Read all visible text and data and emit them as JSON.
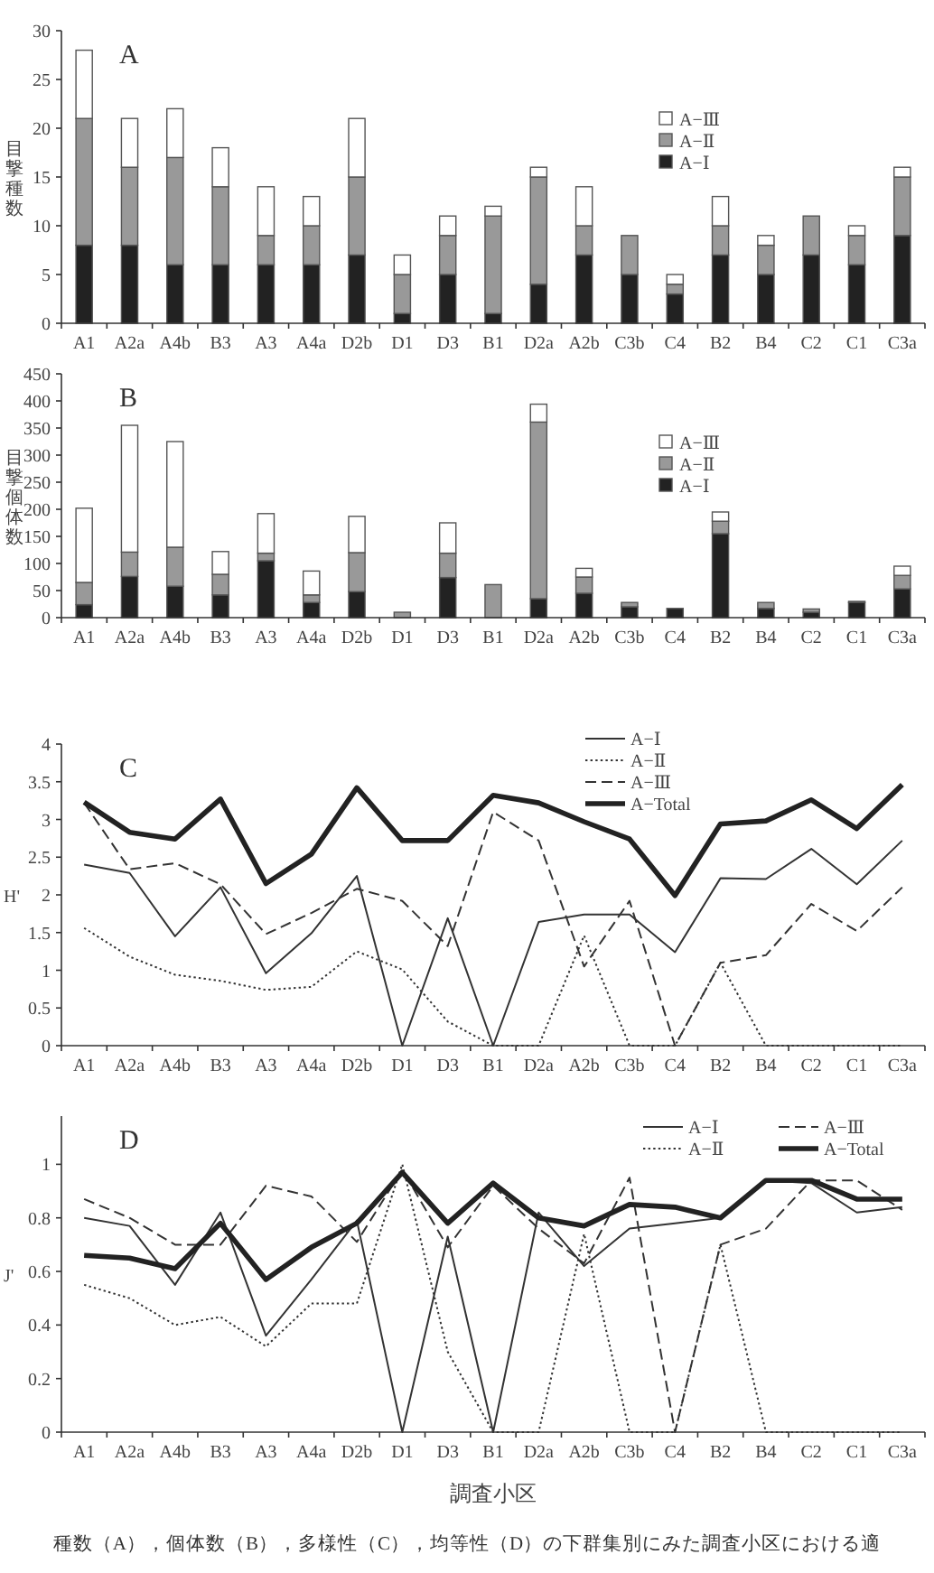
{
  "chart_data": [
    {
      "type": "bar",
      "title": "A",
      "ylabel": "目撃種数",
      "stacked": true,
      "legend": "top right",
      "grid": false,
      "categories": [
        "A1",
        "A2a",
        "A4b",
        "B3",
        "A3",
        "A4a",
        "D2b",
        "D1",
        "D3",
        "B1",
        "D2a",
        "A2b",
        "C3b",
        "C4",
        "B2",
        "B4",
        "C2",
        "C1",
        "C3a"
      ],
      "ylim": [
        0,
        30
      ],
      "yticks": [
        0,
        5,
        10,
        15,
        20,
        25,
        30
      ],
      "series": [
        {
          "name": "A−Ⅰ",
          "color": "#222222",
          "values": [
            8,
            8,
            6,
            6,
            6,
            6,
            7,
            1,
            5,
            1,
            4,
            7,
            5,
            3,
            7,
            5,
            7,
            6,
            9
          ]
        },
        {
          "name": "A−Ⅱ",
          "color": "#999999",
          "values": [
            13,
            8,
            11,
            8,
            3,
            4,
            8,
            4,
            4,
            10,
            11,
            3,
            4,
            1,
            3,
            3,
            4,
            3,
            6
          ]
        },
        {
          "name": "A−Ⅲ",
          "color": "#ffffff",
          "values": [
            7,
            5,
            5,
            4,
            5,
            3,
            6,
            2,
            2,
            1,
            1,
            4,
            0,
            1,
            3,
            1,
            0,
            1,
            1
          ]
        }
      ]
    },
    {
      "type": "bar",
      "title": "B",
      "ylabel": "目撃個体数",
      "stacked": true,
      "legend": "top right",
      "grid": false,
      "categories": [
        "A1",
        "A2a",
        "A4b",
        "B3",
        "A3",
        "A4a",
        "D2b",
        "D1",
        "D3",
        "B1",
        "D2a",
        "A2b",
        "C3b",
        "C4",
        "B2",
        "B4",
        "C2",
        "C1",
        "C3a"
      ],
      "ylim": [
        0,
        450
      ],
      "yticks": [
        0,
        50,
        100,
        150,
        200,
        250,
        300,
        350,
        400,
        450
      ],
      "series": [
        {
          "name": "A−Ⅰ",
          "color": "#222222",
          "values": [
            24,
            76,
            58,
            42,
            105,
            28,
            48,
            0,
            74,
            0,
            35,
            45,
            20,
            17,
            155,
            17,
            10,
            28,
            53
          ]
        },
        {
          "name": "A−Ⅱ",
          "color": "#999999",
          "values": [
            41,
            45,
            72,
            38,
            14,
            14,
            72,
            10,
            45,
            61,
            326,
            30,
            8,
            0,
            23,
            11,
            6,
            2,
            25
          ]
        },
        {
          "name": "A−Ⅲ",
          "color": "#ffffff",
          "values": [
            137,
            234,
            195,
            42,
            73,
            44,
            67,
            0,
            56,
            0,
            33,
            16,
            null,
            0,
            17,
            null,
            null,
            0,
            17
          ]
        }
      ]
    },
    {
      "type": "line",
      "title": "C",
      "ylabel": "H'",
      "legend": "top right",
      "grid": false,
      "marker": "none",
      "categories": [
        "A1",
        "A2a",
        "A4b",
        "B3",
        "A3",
        "A4a",
        "D2b",
        "D1",
        "D3",
        "B1",
        "D2a",
        "A2b",
        "C3b",
        "C4",
        "B2",
        "B4",
        "C2",
        "C1",
        "C3a"
      ],
      "ylim": [
        0,
        4
      ],
      "yticks": [
        0,
        0.5,
        1,
        1.5,
        2,
        2.5,
        3,
        3.5,
        4
      ],
      "series": [
        {
          "name": "A−Ⅰ",
          "color": "#333333",
          "line_style": "solid",
          "values": [
            2.4,
            2.29,
            1.45,
            2.1,
            0.96,
            1.49,
            2.25,
            0,
            1.69,
            0,
            1.64,
            1.74,
            1.74,
            1.24,
            2.22,
            2.21,
            2.61,
            2.14,
            2.72
          ]
        },
        {
          "name": "A−Ⅱ",
          "color": "#333333",
          "line_style": "dotted",
          "values": [
            1.56,
            1.18,
            0.94,
            0.86,
            0.74,
            0.78,
            1.25,
            1.01,
            0.32,
            0,
            0,
            1.46,
            0,
            0,
            1.1,
            0,
            0,
            0,
            0
          ]
        },
        {
          "name": "A−Ⅲ",
          "color": "#333333",
          "line_style": "dashed",
          "values": [
            3.22,
            2.34,
            2.42,
            2.14,
            1.48,
            1.76,
            2.08,
            1.92,
            1.32,
            3.1,
            2.72,
            1.05,
            1.92,
            0,
            1.1,
            1.2,
            1.88,
            1.52,
            2.1
          ]
        },
        {
          "name": "A−Total",
          "color": "#222222",
          "line_style": "solid",
          "values": [
            3.23,
            2.83,
            2.74,
            3.27,
            2.15,
            2.54,
            3.42,
            2.72,
            2.72,
            3.32,
            3.22,
            2.97,
            2.74,
            1.99,
            2.94,
            2.98,
            3.26,
            2.88,
            3.46
          ]
        }
      ]
    },
    {
      "type": "line",
      "title": "D",
      "ylabel": "J'",
      "xlabel": "調査小区",
      "legend": "top right",
      "grid": false,
      "marker": "none",
      "categories": [
        "A1",
        "A2a",
        "A4b",
        "B3",
        "A3",
        "A4a",
        "D2b",
        "D1",
        "D3",
        "B1",
        "D2a",
        "A2b",
        "C3b",
        "C4",
        "B2",
        "B4",
        "C2",
        "C1",
        "C3a"
      ],
      "ylim": [
        0,
        1.18
      ],
      "yticks": [
        0,
        0.2,
        0.4,
        0.6,
        0.8,
        1
      ],
      "annotations": [
        "種数（A），個体数（B），多様性（C），均等性（D）の下群集別にみた調査小区における適"
      ],
      "series": [
        {
          "name": "A−Ⅰ",
          "color": "#333333",
          "line_style": "solid",
          "values": [
            0.8,
            0.77,
            0.55,
            0.82,
            0.36,
            0.57,
            0.79,
            0,
            0.73,
            0,
            0.82,
            0.62,
            0.76,
            0.78,
            0.8,
            0.94,
            0.93,
            0.82,
            0.84
          ]
        },
        {
          "name": "A−Ⅱ",
          "color": "#333333",
          "line_style": "dotted",
          "values": [
            0.55,
            0.5,
            0.4,
            0.43,
            0.32,
            0.48,
            0.48,
            1.0,
            0.3,
            0,
            0,
            0.74,
            0,
            0,
            0.7,
            0,
            0,
            0,
            0
          ]
        },
        {
          "name": "A−Ⅲ",
          "color": "#333333",
          "line_style": "dashed",
          "values": [
            0.87,
            0.8,
            0.7,
            0.7,
            0.92,
            0.88,
            0.71,
            0.98,
            0.69,
            0.92,
            0.76,
            0.63,
            0.95,
            0,
            0.7,
            0.76,
            0.94,
            0.94,
            0.83
          ]
        },
        {
          "name": "A−Total",
          "color": "#222222",
          "line_style": "solid",
          "values": [
            0.66,
            0.65,
            0.61,
            0.78,
            0.57,
            0.69,
            0.78,
            0.97,
            0.78,
            0.93,
            0.8,
            0.77,
            0.85,
            0.84,
            0.8,
            0.94,
            0.94,
            0.87,
            0.87
          ]
        }
      ]
    }
  ]
}
